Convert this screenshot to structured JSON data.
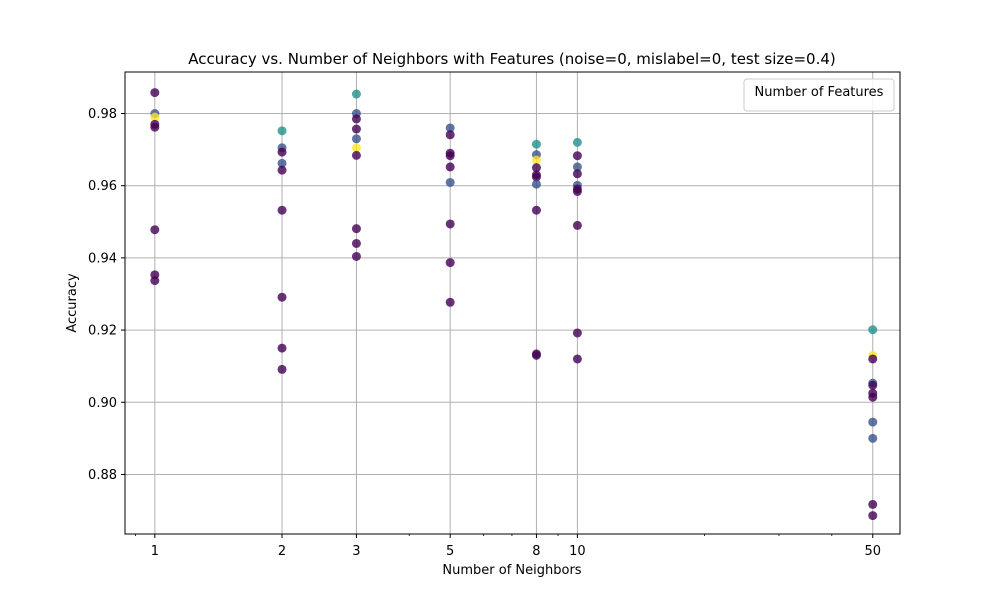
{
  "chart_data": {
    "type": "scatter",
    "title": "Accuracy vs. Number of Neighbors with Features (noise=0, mislabel=0, test size=0.4)",
    "xlabel": "Number of Neighbors",
    "ylabel": "Accuracy",
    "x_scale": "log",
    "xlim": [
      0.85,
      58
    ],
    "ylim": [
      0.8635,
      0.9915
    ],
    "x_ticks": [
      1,
      2,
      3,
      5,
      8,
      10,
      50
    ],
    "x_tick_labels": [
      "1",
      "2",
      "3",
      "5",
      "8",
      "10",
      "50"
    ],
    "y_ticks": [
      0.88,
      0.9,
      0.92,
      0.94,
      0.96,
      0.98
    ],
    "y_tick_labels": [
      "0.88",
      "0.90",
      "0.92",
      "0.94",
      "0.96",
      "0.98"
    ],
    "grid": true,
    "legend": {
      "title": "Number of Features",
      "placement": "top-right",
      "entries": []
    },
    "colors": {
      "dark_purple": "#440154",
      "slate": "#3b528b",
      "teal": "#21918c",
      "yellow": "#fde725"
    },
    "points": [
      {
        "x": 1,
        "y": 0.9858,
        "c": "dark_purple"
      },
      {
        "x": 1,
        "y": 0.98,
        "c": "slate"
      },
      {
        "x": 1,
        "y": 0.979,
        "c": "yellow"
      },
      {
        "x": 1,
        "y": 0.977,
        "c": "dark_purple"
      },
      {
        "x": 1,
        "y": 0.9762,
        "c": "dark_purple"
      },
      {
        "x": 1,
        "y": 0.9478,
        "c": "dark_purple"
      },
      {
        "x": 1,
        "y": 0.9353,
        "c": "dark_purple"
      },
      {
        "x": 1,
        "y": 0.9337,
        "c": "dark_purple"
      },
      {
        "x": 2,
        "y": 0.9752,
        "c": "teal"
      },
      {
        "x": 2,
        "y": 0.9705,
        "c": "slate"
      },
      {
        "x": 2,
        "y": 0.9693,
        "c": "dark_purple"
      },
      {
        "x": 2,
        "y": 0.9662,
        "c": "slate"
      },
      {
        "x": 2,
        "y": 0.9643,
        "c": "dark_purple"
      },
      {
        "x": 2,
        "y": 0.9532,
        "c": "dark_purple"
      },
      {
        "x": 2,
        "y": 0.9291,
        "c": "dark_purple"
      },
      {
        "x": 2,
        "y": 0.915,
        "c": "dark_purple"
      },
      {
        "x": 2,
        "y": 0.9091,
        "c": "dark_purple"
      },
      {
        "x": 3,
        "y": 0.9854,
        "c": "teal"
      },
      {
        "x": 3,
        "y": 0.98,
        "c": "slate"
      },
      {
        "x": 3,
        "y": 0.9785,
        "c": "dark_purple"
      },
      {
        "x": 3,
        "y": 0.9757,
        "c": "dark_purple"
      },
      {
        "x": 3,
        "y": 0.973,
        "c": "slate"
      },
      {
        "x": 3,
        "y": 0.9705,
        "c": "yellow"
      },
      {
        "x": 3,
        "y": 0.9684,
        "c": "dark_purple"
      },
      {
        "x": 3,
        "y": 0.9481,
        "c": "dark_purple"
      },
      {
        "x": 3,
        "y": 0.944,
        "c": "dark_purple"
      },
      {
        "x": 3,
        "y": 0.9404,
        "c": "dark_purple"
      },
      {
        "x": 5,
        "y": 0.976,
        "c": "slate"
      },
      {
        "x": 5,
        "y": 0.9741,
        "c": "dark_purple"
      },
      {
        "x": 5,
        "y": 0.969,
        "c": "dark_purple"
      },
      {
        "x": 5,
        "y": 0.9683,
        "c": "dark_purple"
      },
      {
        "x": 5,
        "y": 0.9652,
        "c": "dark_purple"
      },
      {
        "x": 5,
        "y": 0.9609,
        "c": "slate"
      },
      {
        "x": 5,
        "y": 0.9494,
        "c": "dark_purple"
      },
      {
        "x": 5,
        "y": 0.9387,
        "c": "dark_purple"
      },
      {
        "x": 5,
        "y": 0.9277,
        "c": "dark_purple"
      },
      {
        "x": 8,
        "y": 0.9715,
        "c": "teal"
      },
      {
        "x": 8,
        "y": 0.9686,
        "c": "slate"
      },
      {
        "x": 8,
        "y": 0.9671,
        "c": "yellow"
      },
      {
        "x": 8,
        "y": 0.965,
        "c": "dark_purple"
      },
      {
        "x": 8,
        "y": 0.963,
        "c": "dark_purple"
      },
      {
        "x": 8,
        "y": 0.9624,
        "c": "dark_purple"
      },
      {
        "x": 8,
        "y": 0.9604,
        "c": "slate"
      },
      {
        "x": 8,
        "y": 0.9532,
        "c": "dark_purple"
      },
      {
        "x": 8,
        "y": 0.9134,
        "c": "dark_purple"
      },
      {
        "x": 8,
        "y": 0.913,
        "c": "dark_purple"
      },
      {
        "x": 10,
        "y": 0.972,
        "c": "teal"
      },
      {
        "x": 10,
        "y": 0.9683,
        "c": "dark_purple"
      },
      {
        "x": 10,
        "y": 0.9652,
        "c": "slate"
      },
      {
        "x": 10,
        "y": 0.9633,
        "c": "dark_purple"
      },
      {
        "x": 10,
        "y": 0.9601,
        "c": "slate"
      },
      {
        "x": 10,
        "y": 0.9591,
        "c": "dark_purple"
      },
      {
        "x": 10,
        "y": 0.9584,
        "c": "dark_purple"
      },
      {
        "x": 10,
        "y": 0.949,
        "c": "dark_purple"
      },
      {
        "x": 10,
        "y": 0.9192,
        "c": "dark_purple"
      },
      {
        "x": 10,
        "y": 0.912,
        "c": "dark_purple"
      },
      {
        "x": 50,
        "y": 0.9201,
        "c": "teal"
      },
      {
        "x": 50,
        "y": 0.913,
        "c": "yellow"
      },
      {
        "x": 50,
        "y": 0.912,
        "c": "dark_purple"
      },
      {
        "x": 50,
        "y": 0.9053,
        "c": "slate"
      },
      {
        "x": 50,
        "y": 0.9047,
        "c": "dark_purple"
      },
      {
        "x": 50,
        "y": 0.9025,
        "c": "dark_purple"
      },
      {
        "x": 50,
        "y": 0.9014,
        "c": "dark_purple"
      },
      {
        "x": 50,
        "y": 0.8945,
        "c": "slate"
      },
      {
        "x": 50,
        "y": 0.89,
        "c": "slate"
      },
      {
        "x": 50,
        "y": 0.8717,
        "c": "dark_purple"
      },
      {
        "x": 50,
        "y": 0.8686,
        "c": "dark_purple"
      }
    ]
  }
}
